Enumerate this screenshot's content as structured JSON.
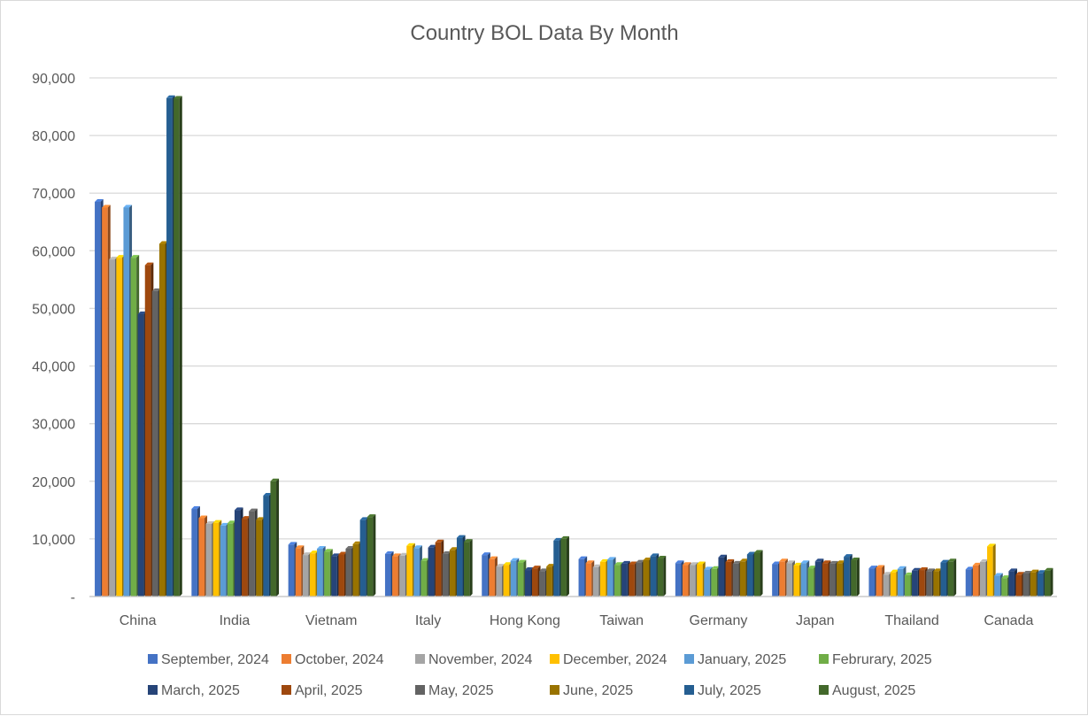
{
  "chart_data": {
    "type": "bar",
    "title": "Country BOL Data By Month",
    "xlabel": "",
    "ylabel": "",
    "ylim": [
      0,
      90000
    ],
    "yticks": [
      0,
      10000,
      20000,
      30000,
      40000,
      50000,
      60000,
      70000,
      80000,
      90000
    ],
    "ytick_labels": [
      "-",
      "10,000",
      "20,000",
      "30,000",
      "40,000",
      "50,000",
      "60,000",
      "70,000",
      "80,000",
      "90,000"
    ],
    "grid": true,
    "legend_position": "bottom",
    "categories": [
      "China",
      "India",
      "Vietnam",
      "Italy",
      "Hong Kong",
      "Taiwan",
      "Germany",
      "Japan",
      "Thailand",
      "Canada"
    ],
    "series": [
      {
        "name": "September, 2024",
        "color": "#4472C4",
        "values": [
          68500,
          15200,
          9000,
          7400,
          7200,
          6500,
          5800,
          5600,
          4900,
          4700
        ]
      },
      {
        "name": "October, 2024",
        "color": "#ED7D31",
        "values": [
          67500,
          13600,
          8400,
          7000,
          6500,
          5800,
          5500,
          6100,
          5000,
          5400
        ]
      },
      {
        "name": "November, 2024",
        "color": "#A5A5A5",
        "values": [
          58500,
          12600,
          7200,
          7100,
          5200,
          5100,
          5500,
          5800,
          3800,
          6000
        ]
      },
      {
        "name": "December, 2024",
        "color": "#FFC000",
        "values": [
          58800,
          12800,
          7500,
          8800,
          5500,
          6000,
          5600,
          5400,
          4200,
          8700
        ]
      },
      {
        "name": "January, 2025",
        "color": "#5B9BD5",
        "values": [
          67500,
          12300,
          8300,
          8400,
          6200,
          6400,
          4700,
          5800,
          4800,
          3600
        ]
      },
      {
        "name": "Februrary, 2025",
        "color": "#70AD47",
        "values": [
          58800,
          12700,
          7800,
          6200,
          5900,
          5500,
          4800,
          4900,
          3700,
          3200
        ]
      },
      {
        "name": "March, 2025",
        "color": "#264478",
        "values": [
          49000,
          15000,
          7000,
          8500,
          4600,
          5700,
          6800,
          6100,
          4500,
          4400
        ]
      },
      {
        "name": "April, 2025",
        "color": "#9E480E",
        "values": [
          57500,
          13500,
          7300,
          9400,
          4900,
          5600,
          6000,
          5800,
          4600,
          3800
        ]
      },
      {
        "name": "May, 2025",
        "color": "#636363",
        "values": [
          53000,
          14800,
          8300,
          7400,
          4400,
          5900,
          5700,
          5700,
          4400,
          4000
        ]
      },
      {
        "name": "June, 2025",
        "color": "#997300",
        "values": [
          61200,
          13300,
          9100,
          8100,
          5200,
          6300,
          6100,
          5800,
          4400,
          4200
        ]
      },
      {
        "name": "July, 2025",
        "color": "#255E91",
        "values": [
          86500,
          17500,
          13300,
          10200,
          9700,
          7000,
          7300,
          6900,
          5900,
          4100
        ]
      },
      {
        "name": "August, 2025",
        "color": "#43682B",
        "values": [
          86400,
          20000,
          13800,
          9500,
          10000,
          6600,
          7600,
          6300,
          6100,
          4500
        ]
      }
    ]
  }
}
